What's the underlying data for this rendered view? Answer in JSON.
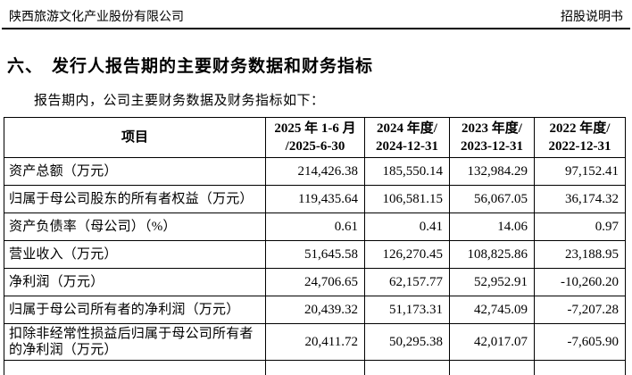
{
  "page_header": {
    "company": "陕西旅游文化产业股份有限公司",
    "doc_type": "招股说明书"
  },
  "section": {
    "number": "六、",
    "title": "发行人报告期的主要财务数据和财务指标",
    "intro": "报告期内，公司主要财务数据及财务指标如下："
  },
  "table": {
    "header": {
      "item": "项目",
      "col_2025": {
        "line1": "2025 年 1-6 月",
        "line2": "/2025-6-30"
      },
      "col_2024": {
        "line1": "2024 年度/",
        "line2": "2024-12-31"
      },
      "col_2023": {
        "line1": "2023 年度/",
        "line2": "2023-12-31"
      },
      "col_2022": {
        "line1": "2022 年度/",
        "line2": "2022-12-31"
      }
    },
    "rows": [
      {
        "item": "资产总额（万元）",
        "values": [
          "214,426.38",
          "185,550.14",
          "132,984.29",
          "97,152.41"
        ]
      },
      {
        "item": "归属于母公司股东的所有者权益（万元）",
        "values": [
          "119,435.64",
          "106,581.15",
          "56,067.05",
          "36,174.32"
        ]
      },
      {
        "item": "资产负债率（母公司）（%）",
        "values": [
          "0.61",
          "0.41",
          "14.06",
          "0.97"
        ]
      },
      {
        "item": "营业收入（万元）",
        "values": [
          "51,645.58",
          "126,270.45",
          "108,825.86",
          "23,188.95"
        ]
      },
      {
        "item": "净利润（万元）",
        "values": [
          "24,706.65",
          "62,157.77",
          "52,952.91",
          "-10,260.20"
        ]
      },
      {
        "item": "归属于母公司所有者的净利润（万元）",
        "values": [
          "20,439.32",
          "51,173.31",
          "42,745.09",
          "-7,207.28"
        ]
      },
      {
        "item": "扣除非经常性损益后归属于母公司所有者的净利润（万元）",
        "values": [
          "20,411.72",
          "50,295.38",
          "42,017.07",
          "-7,605.90"
        ]
      }
    ]
  }
}
